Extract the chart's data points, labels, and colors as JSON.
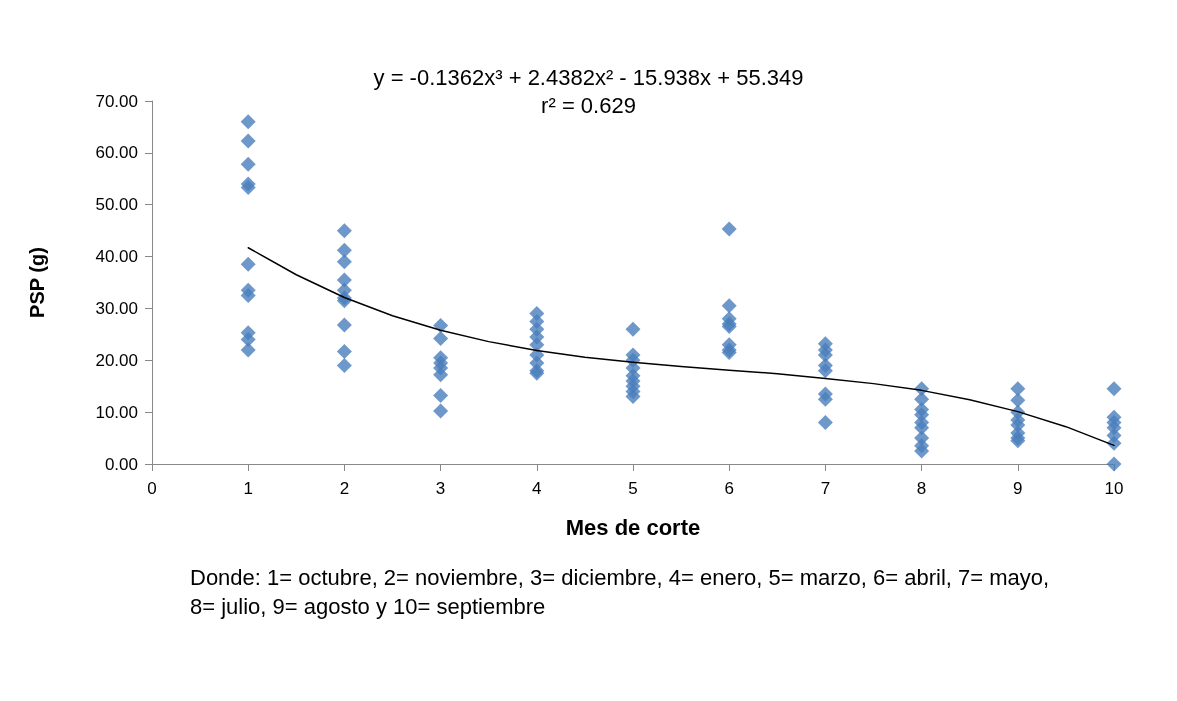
{
  "chart_data": {
    "type": "scatter",
    "xlabel": "Mes de corte",
    "ylabel": "PSP (g)",
    "annotations": [
      "y = -0.1362x³ + 2.4382x² - 15.938x + 55.349",
      "r² = 0.629",
      "Donde: 1= octubre, 2= noviembre, 3= diciembre, 4= enero, 5= marzo, 6= abril, 7= mayo, 8= julio, 9= agosto y 10= septiembre"
    ],
    "xlim": [
      0,
      10
    ],
    "xticks": [
      0,
      1,
      2,
      3,
      4,
      5,
      6,
      7,
      8,
      9,
      10
    ],
    "ylim": [
      0,
      70
    ],
    "yticks": [
      {
        "value": 0,
        "label": "0.00"
      },
      {
        "value": 10,
        "label": "10.00"
      },
      {
        "value": 20,
        "label": "20.00"
      },
      {
        "value": 30,
        "label": "30.00"
      },
      {
        "value": 40,
        "label": "40.00"
      },
      {
        "value": 50,
        "label": "50.00"
      },
      {
        "value": 60,
        "label": "60.00"
      },
      {
        "value": 70,
        "label": "70.00"
      }
    ],
    "grid": false,
    "series": [
      {
        "color": "#4a7ebb",
        "marker": "diamond",
        "x": [
          1,
          1,
          1,
          1,
          1,
          1,
          1,
          1,
          1,
          1,
          1,
          2,
          2,
          2,
          2,
          2,
          2,
          2,
          2,
          2,
          2,
          3,
          3,
          3,
          3,
          3,
          3,
          3,
          3,
          4,
          4,
          4,
          4,
          4,
          4,
          4,
          4,
          4,
          5,
          5,
          5,
          5,
          5,
          5,
          5,
          5,
          5,
          6,
          6,
          6,
          6,
          6,
          6,
          6,
          6,
          7,
          7,
          7,
          7,
          7,
          7,
          7,
          7,
          8,
          8,
          8,
          8,
          8,
          8,
          8,
          8,
          8,
          9,
          9,
          9,
          9,
          9,
          9,
          9,
          9,
          10,
          10,
          10,
          10,
          10,
          10,
          10
        ],
        "values": [
          66,
          62.3,
          57.8,
          54,
          53.3,
          38.5,
          33.5,
          32.5,
          25.3,
          24,
          22,
          45,
          41.2,
          39,
          35.5,
          33.5,
          32,
          31.5,
          26.8,
          21.7,
          19,
          26.7,
          24.2,
          20.5,
          19.5,
          18.5,
          17.2,
          13.2,
          10.2,
          29,
          27.5,
          26,
          24.5,
          23,
          21,
          19.5,
          18,
          17.5,
          26,
          21,
          20,
          18.5,
          17,
          16,
          15,
          14,
          13,
          45.3,
          30.5,
          28,
          27,
          26.5,
          23,
          22,
          21.5,
          23.2,
          22,
          21,
          19,
          18,
          13.5,
          12.5,
          8,
          14.5,
          12.5,
          10.5,
          9.5,
          8,
          7,
          5,
          3.5,
          2.5,
          14.5,
          12.3,
          10,
          8.5,
          7.5,
          6,
          5,
          4.5,
          14.5,
          9,
          8,
          7,
          5.5,
          4,
          0
        ]
      },
      {
        "type": "line",
        "color": "#000000",
        "marker": "none",
        "line_style": "solid",
        "x": [
          1,
          1.5,
          2,
          2.5,
          3,
          3.5,
          4,
          4.5,
          5,
          5.5,
          6,
          6.5,
          7,
          7.5,
          8,
          8.5,
          9,
          9.5,
          10
        ],
        "values": [
          41.7,
          36.5,
          32.1,
          28.6,
          25.8,
          23.6,
          21.9,
          20.6,
          19.6,
          18.8,
          18.1,
          17.4,
          16.5,
          15.5,
          14.2,
          12.4,
          10.1,
          7.2,
          3.6
        ]
      }
    ]
  }
}
